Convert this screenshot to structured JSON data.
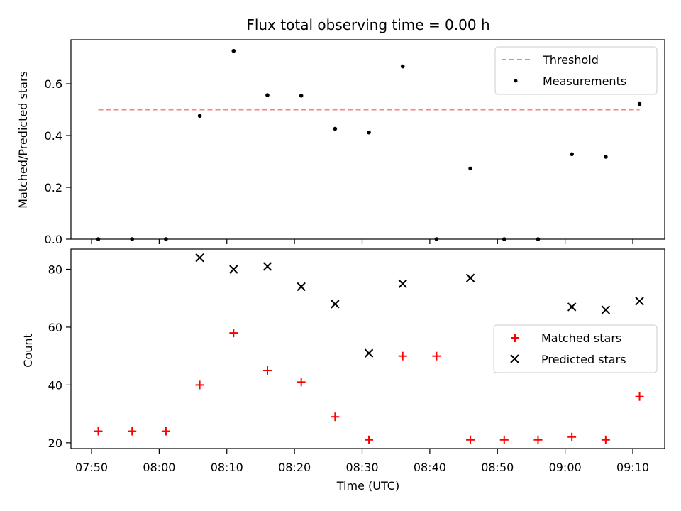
{
  "chart_data": [
    {
      "type": "scatter",
      "title": "Flux total observing time = 0.00 h",
      "xlabel": "",
      "ylabel": "Matched/Predicted stars",
      "ylim": [
        0,
        0.77
      ],
      "yticks": [
        0.0,
        0.2,
        0.4,
        0.6
      ],
      "ytick_labels": [
        "0.0",
        "0.2",
        "0.4",
        "0.6"
      ],
      "legend_position": "top-right",
      "series": [
        {
          "name": "Threshold",
          "kind": "dashed-line",
          "color": "#ff7f7f",
          "x": [
            "07:51",
            "09:11"
          ],
          "y": [
            0.5,
            0.5
          ]
        },
        {
          "name": "Measurements",
          "kind": "dot",
          "color": "#000000",
          "x": [
            "07:51",
            "07:56",
            "08:01",
            "08:06",
            "08:11",
            "08:16",
            "08:21",
            "08:26",
            "08:31",
            "08:36",
            "08:41",
            "08:46",
            "08:51",
            "08:56",
            "09:01",
            "09:06",
            "09:11"
          ],
          "y": [
            0.0,
            0.0,
            0.0,
            0.476,
            0.727,
            0.556,
            0.554,
            0.426,
            0.412,
            0.667,
            0.0,
            0.273,
            0.0,
            0.0,
            0.328,
            0.318,
            0.522
          ]
        }
      ]
    },
    {
      "type": "scatter",
      "xlabel": "Time (UTC)",
      "ylabel": "Count",
      "ylim": [
        18,
        87
      ],
      "yticks": [
        20,
        40,
        60,
        80
      ],
      "xticks": [
        "07:50",
        "08:00",
        "08:10",
        "08:20",
        "08:30",
        "08:40",
        "08:50",
        "09:00",
        "09:10"
      ],
      "legend_position": "center-right",
      "series": [
        {
          "name": "Matched stars",
          "kind": "plus",
          "color": "#ff0000",
          "x": [
            "07:51",
            "07:56",
            "08:01",
            "08:06",
            "08:11",
            "08:16",
            "08:21",
            "08:26",
            "08:31",
            "08:36",
            "08:41",
            "08:46",
            "08:51",
            "08:56",
            "09:01",
            "09:06",
            "09:11"
          ],
          "y": [
            24,
            24,
            24,
            40,
            58,
            45,
            41,
            29,
            21,
            50,
            50,
            21,
            21,
            21,
            22,
            21,
            36
          ]
        },
        {
          "name": "Predicted stars",
          "kind": "x",
          "color": "#000000",
          "x": [
            "08:06",
            "08:11",
            "08:16",
            "08:21",
            "08:26",
            "08:31",
            "08:36",
            "08:46",
            "09:01",
            "09:06",
            "09:11"
          ],
          "y": [
            84,
            80,
            81,
            74,
            68,
            51,
            75,
            77,
            67,
            66,
            69
          ]
        }
      ]
    }
  ]
}
